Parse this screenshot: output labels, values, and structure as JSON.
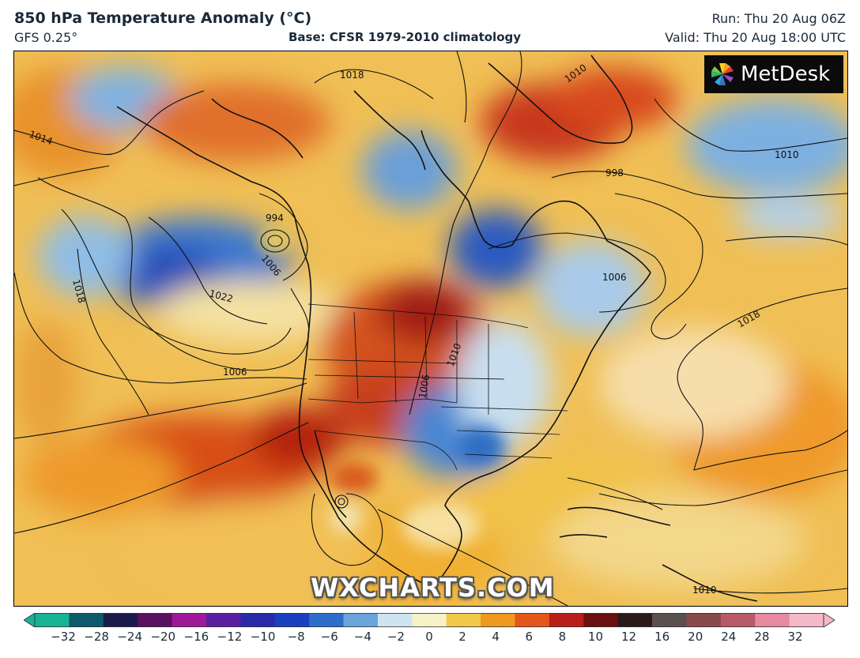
{
  "header": {
    "title": "850 hPa Temperature Anomaly (°C)",
    "model": "GFS 0.25°",
    "base": "Base: CFSR 1979-2010 climatology",
    "run": "Run: Thu 20 Aug 06Z",
    "valid": "Valid: Thu 20 Aug 18:00 UTC"
  },
  "branding": {
    "logo_text": "MetDesk",
    "watermark": "WXCHARTS.COM"
  },
  "map": {
    "region": "North America",
    "variable": "850 hPa temperature anomaly",
    "units": "°C",
    "isobar_labels": [
      "1014",
      "1018",
      "1010",
      "1010",
      "998",
      "994",
      "1006",
      "1022",
      "1018",
      "1006",
      "1018",
      "1006",
      "1006",
      "1010",
      "1010"
    ]
  },
  "colorbar": {
    "ticks": [
      "−32",
      "−28",
      "−24",
      "−20",
      "−16",
      "−12",
      "−10",
      "−8",
      "−6",
      "−4",
      "−2",
      "0",
      "2",
      "4",
      "6",
      "8",
      "10",
      "12",
      "16",
      "20",
      "24",
      "28",
      "32"
    ],
    "colors": [
      "#17b394",
      "#0d5a6b",
      "#1c1a4a",
      "#5c1060",
      "#a0189a",
      "#5a1fa0",
      "#2a2aa8",
      "#1a3fc0",
      "#2d6ec9",
      "#6aa5dc",
      "#cfe4f3",
      "#f6f2c8",
      "#f2c84a",
      "#ee9a1e",
      "#e4561a",
      "#b81f18",
      "#6a1010",
      "#2a1a1a",
      "#5a5050",
      "#8a4a4a",
      "#b85a6a",
      "#e58aa0",
      "#f4b8c8"
    ]
  }
}
